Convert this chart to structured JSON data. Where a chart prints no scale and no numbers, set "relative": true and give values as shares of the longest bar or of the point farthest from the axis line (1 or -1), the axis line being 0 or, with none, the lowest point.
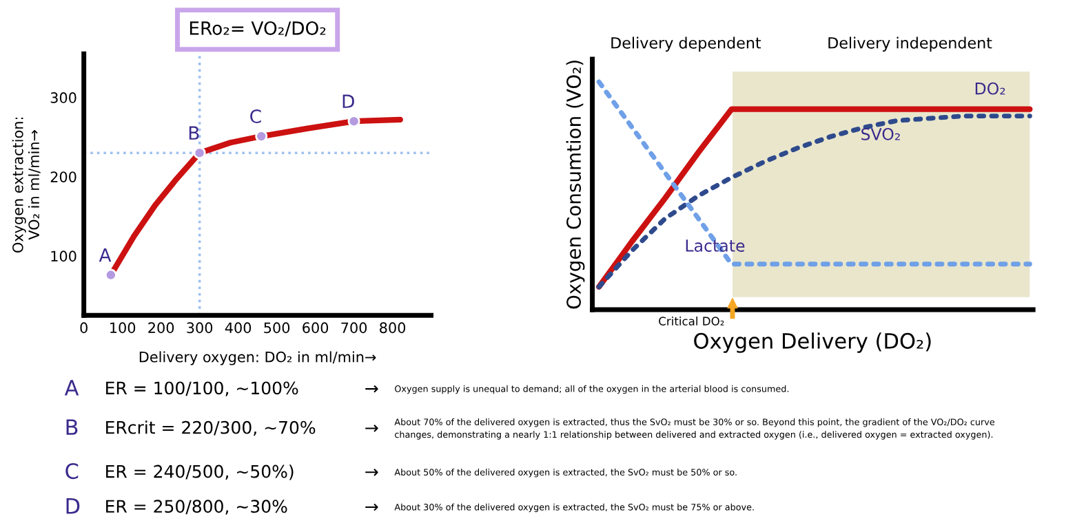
{
  "chart_data": [
    {
      "type": "line",
      "title": "ERo₂= VO₂/DO₂",
      "xlabel": "Delivery oxygen: DO₂ in ml/min→",
      "ylabel": "Oxygen extraction:\nVO₂ in ml/min→",
      "xlim": [
        0,
        900
      ],
      "xticks": [
        0,
        100,
        200,
        300,
        400,
        500,
        600,
        700,
        800
      ],
      "ylim": [
        25,
        355
      ],
      "yticks": [
        100,
        200,
        300
      ],
      "series": [
        {
          "type": "line",
          "color": "#cc1111",
          "x": [
            70,
            130,
            185,
            240,
            300,
            380,
            460,
            580,
            700,
            820
          ],
          "values": [
            76,
            125,
            164,
            197,
            230,
            243,
            251,
            261,
            270,
            272
          ]
        },
        {
          "type": "scatter",
          "color": "#b49ae0",
          "x": [
            70,
            300,
            460,
            700
          ],
          "values": [
            76,
            230,
            251,
            270
          ]
        }
      ],
      "ref_lines": [
        {
          "axis": "x",
          "value": 300,
          "color": "#9fc0f0",
          "line_style": "dotted"
        },
        {
          "axis": "y",
          "value": 230,
          "color": "#9fc0f0",
          "line_style": "dotted"
        }
      ],
      "annotations": [
        {
          "text": "A",
          "x": 70,
          "y": 76
        },
        {
          "text": "B",
          "x": 300,
          "y": 230
        },
        {
          "text": "C",
          "x": 460,
          "y": 251
        },
        {
          "text": "D",
          "x": 700,
          "y": 270
        }
      ],
      "grid": false,
      "legend": false
    },
    {
      "type": "line",
      "relative": true,
      "xlabel": "Oxygen Delivery (DO₂)",
      "ylabel": "Oxygen Consumtion (VO₂)",
      "categories": [
        null,
        null,
        null,
        null,
        null,
        null,
        null,
        null,
        null,
        null,
        null,
        null,
        null,
        null
      ],
      "series": [
        {
          "name": "DO₂",
          "color": "#cc1111",
          "line_style": "solid",
          "values": [
            0.1,
            0.3,
            0.49,
            0.69,
            0.88,
            0.88,
            0.88,
            0.88,
            0.88,
            0.88,
            0.88,
            0.88,
            0.88,
            0.88
          ]
        },
        {
          "name": "SVO₂",
          "color": "#2e4a8c",
          "line_style": "dotted",
          "values": [
            0.1,
            0.26,
            0.4,
            0.5,
            0.58,
            0.65,
            0.71,
            0.76,
            0.8,
            0.83,
            0.84,
            0.85,
            0.85,
            0.85
          ]
        },
        {
          "name": "Lactate",
          "color": "#6fa0e8",
          "line_style": "dotted",
          "values": [
            1.0,
            0.8,
            0.6,
            0.4,
            0.2,
            0.2,
            0.2,
            0.2,
            0.2,
            0.2,
            0.2,
            0.2,
            0.2,
            0.2
          ]
        }
      ],
      "annotations": [
        "Delivery dependent",
        "Delivery independent",
        "Critical DO₂"
      ],
      "grid": false,
      "legend": false
    },
    {
      "type": "other",
      "annotations": [
        "A",
        "ER = 100/100, ~100%",
        "→",
        "Oxygen supply is unequal to demand; all of the oxygen in the arterial blood is consumed.",
        "B",
        "ERcrit = 220/300, ~70%",
        "→",
        "About 70% of the delivered oxygen is extracted, thus the SvO₂ must be 30% or so. Beyond this point, the gradient of the VO₂/DO₂ curve\nchanges, demonstrating a nearly 1:1 relationship between delivered and extracted oxygen (i.e., delivered oxygen = extracted oxygen).",
        "C",
        "ER = 240/500, ~50%)",
        "→",
        "About 50% of the delivered oxygen is extracted, the SvO₂ must be 50% or so.",
        "D",
        "ER = 250/800, ~30%",
        "→",
        "About 30% of the delivered oxygen is extracted, the SvO₂ must be 75% or above."
      ]
    }
  ]
}
